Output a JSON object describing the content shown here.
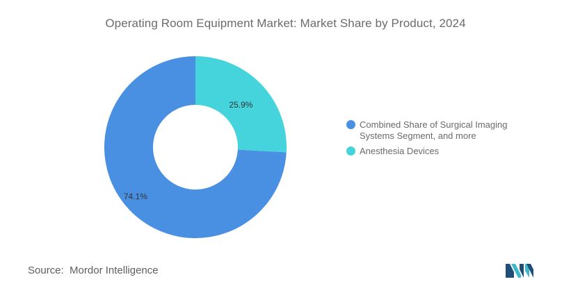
{
  "chart_data": {
    "type": "pie",
    "title": "Operating Room Equipment Market: Market Share by Product, 2024",
    "categories": [
      "Combined Share of Surgical Imaging Systems Segment, and more",
      "Anesthesia Devices"
    ],
    "values": [
      74.1,
      25.9
    ],
    "data_labels": [
      "74.1%",
      "25.9%"
    ],
    "colors": [
      "#4a90e2",
      "#45d4dc"
    ],
    "donut": true,
    "legend_position": "right"
  },
  "legend": {
    "items": [
      {
        "label_line1": "Combined Share of Surgical Imaging",
        "label_line2": "Systems Segment, and more",
        "color": "#4a90e2"
      },
      {
        "label_line1": "Anesthesia Devices",
        "label_line2": "",
        "color": "#45d4dc"
      }
    ]
  },
  "source": {
    "label": "Source:",
    "value": "Mordor Intelligence"
  },
  "logo": {
    "icon": "mordor-intelligence-logo-icon",
    "colors": [
      "#1f4e79",
      "#3fb8c9"
    ]
  }
}
